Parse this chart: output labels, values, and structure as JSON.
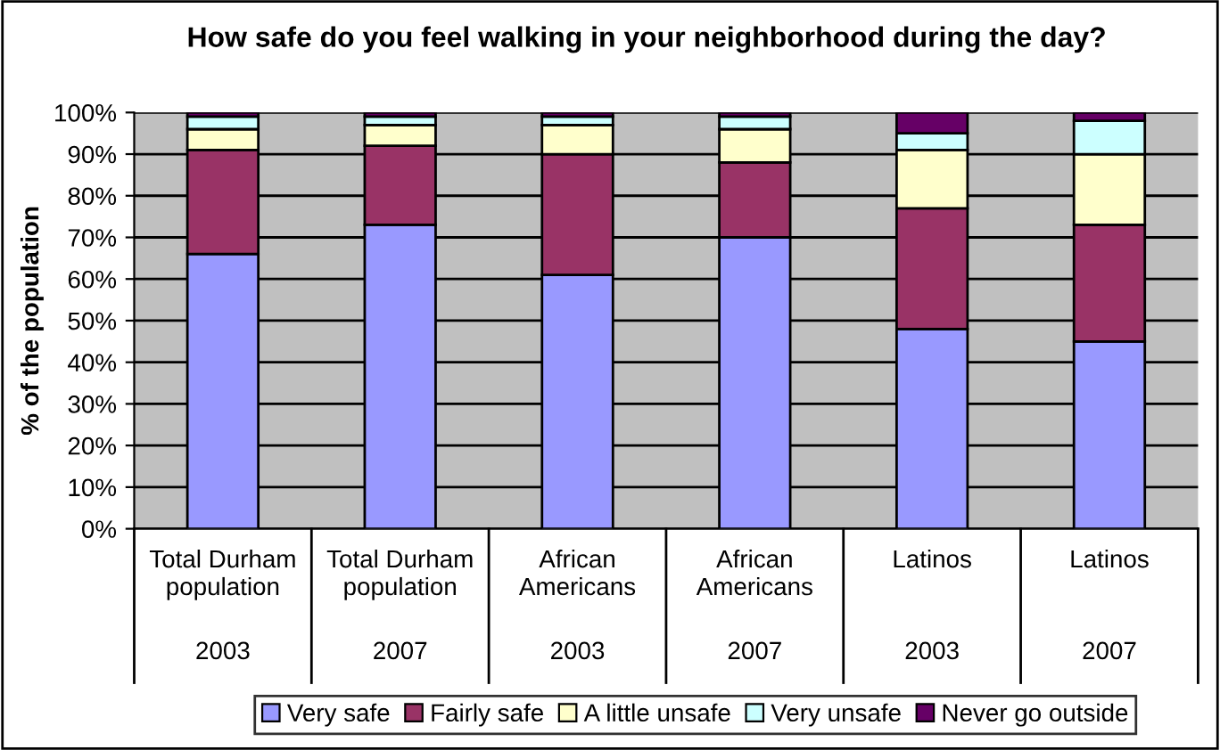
{
  "chart_data": {
    "type": "bar",
    "stacked": true,
    "title": "How safe do you feel walking in your neighborhood during the day?",
    "ylabel": "% of the population",
    "categories": [
      "Total Durham population 2003",
      "Total Durham population 2007",
      "African Americans 2003",
      "African Americans 2007",
      "Latinos 2003",
      "Latinos 2007"
    ],
    "series": [
      {
        "name": "Very safe",
        "color": "#9999ff",
        "values": [
          66,
          73,
          61,
          70,
          48,
          45
        ]
      },
      {
        "name": "Fairly safe",
        "color": "#993366",
        "values": [
          25,
          19,
          29,
          18,
          29,
          28
        ]
      },
      {
        "name": "A little unsafe",
        "color": "#ffffcc",
        "values": [
          5,
          5,
          7,
          8,
          14,
          17
        ]
      },
      {
        "name": "Very unsafe",
        "color": "#ccffff",
        "values": [
          3,
          2,
          2,
          3,
          4,
          8
        ]
      },
      {
        "name": "Never go outside",
        "color": "#660066",
        "values": [
          1,
          1,
          1,
          1,
          5,
          2
        ]
      }
    ],
    "ylim": [
      0,
      100
    ],
    "yticks": [
      {
        "value": 0,
        "label": "0%"
      },
      {
        "value": 10,
        "label": "10%"
      },
      {
        "value": 20,
        "label": "20%"
      },
      {
        "value": 30,
        "label": "30%"
      },
      {
        "value": 40,
        "label": "40%"
      },
      {
        "value": 50,
        "label": "50%"
      },
      {
        "value": 60,
        "label": "60%"
      },
      {
        "value": 70,
        "label": "70%"
      },
      {
        "value": 80,
        "label": "80%"
      },
      {
        "value": 90,
        "label": "90%"
      },
      {
        "value": 100,
        "label": "100%"
      }
    ],
    "grid": "y",
    "legend": "bottom"
  }
}
